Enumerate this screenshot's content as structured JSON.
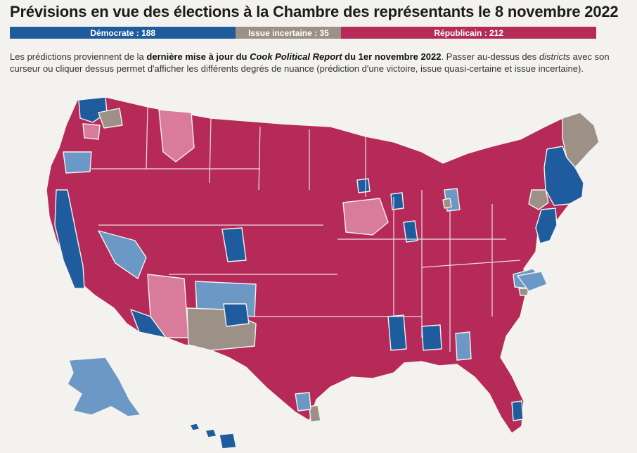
{
  "title": "Prévisions en vue des élections à la Chambre des représentants le 8 novembre 2022",
  "legend": {
    "democrat": {
      "label": "Démocrate : 188",
      "seats": 188,
      "color": "#1f5c9e"
    },
    "uncertain": {
      "label": "Issue incertaine : 35",
      "seats": 35,
      "color": "#9c9087"
    },
    "republican": {
      "label": "Républicain : 212",
      "seats": 212,
      "color": "#b52a58"
    }
  },
  "intro": {
    "p1": "Les prédictions proviennent de la ",
    "b1": "dernière mise à jour du ",
    "i1": "Cook Political Report",
    "b2": " du 1er novembre 2022",
    "p2": ". Passer au-dessus des ",
    "i2": "districts",
    "p3": " avec son curseur ou cliquer dessus permet d'afficher les différents degrés de nuance (prédiction d'une victoire, issue quasi-certaine et issue incertaine)."
  },
  "map_colors": {
    "rep_solid": "#b52a58",
    "rep_lean": "#d97b9a",
    "dem_solid": "#1f5c9e",
    "dem_lean": "#6c98c6",
    "uncertain": "#9c9087",
    "border": "#f3f2ee"
  }
}
